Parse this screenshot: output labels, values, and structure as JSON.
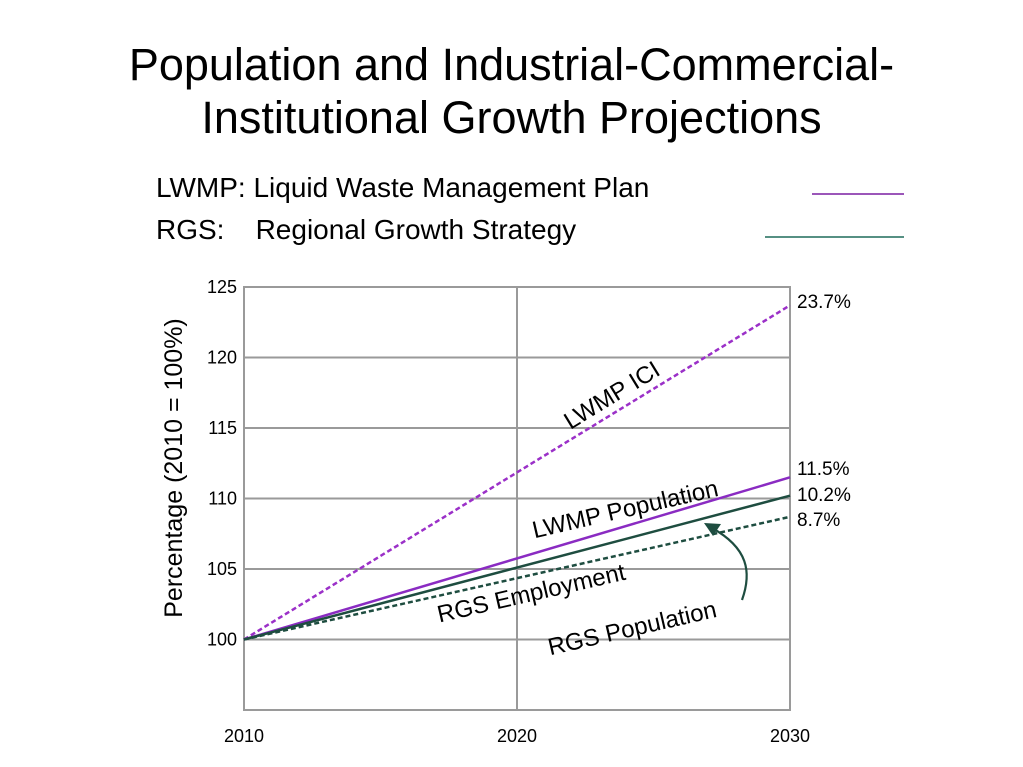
{
  "chart_data": {
    "type": "line",
    "title": "Population and Industrial-Commercial-Institutional Growth Projections",
    "title_lines": [
      "Population and Industrial-Commercial-",
      "Institutional Growth Projections"
    ],
    "legend_notes": [
      {
        "text": "LWMP: Liquid Waste Management Plan",
        "color": "#7a1fa2"
      },
      {
        "text": "RGS:    Regional Growth Strategy",
        "color": "#1f6b5a"
      }
    ],
    "ylabel": "Percentage (2010 = 100%)",
    "xlabel": "",
    "xlim": [
      2010,
      2030
    ],
    "ylim": [
      95,
      125
    ],
    "x_ticks": [
      "2010",
      "2020",
      "2030"
    ],
    "y_ticks": [
      "100",
      "105",
      "110",
      "115",
      "120",
      "125"
    ],
    "grid": true,
    "series": [
      {
        "name": "LWMP ICI",
        "x": [
          2010,
          2030
        ],
        "values": [
          100,
          123.7
        ],
        "color": "#9b30c8",
        "style": "dashed",
        "end_label": "23.7%"
      },
      {
        "name": "LWMP Population",
        "x": [
          2010,
          2030
        ],
        "values": [
          100,
          111.5
        ],
        "color": "#8a2bc2",
        "style": "solid",
        "end_label": "11.5%"
      },
      {
        "name": "RGS Population",
        "x": [
          2010,
          2030
        ],
        "values": [
          100,
          110.2
        ],
        "color": "#1e4d40",
        "style": "solid",
        "end_label": "10.2%"
      },
      {
        "name": "RGS Employment",
        "x": [
          2010,
          2030
        ],
        "values": [
          100,
          108.7
        ],
        "color": "#1e4d40",
        "style": "dashed",
        "end_label": "8.7%"
      }
    ]
  }
}
